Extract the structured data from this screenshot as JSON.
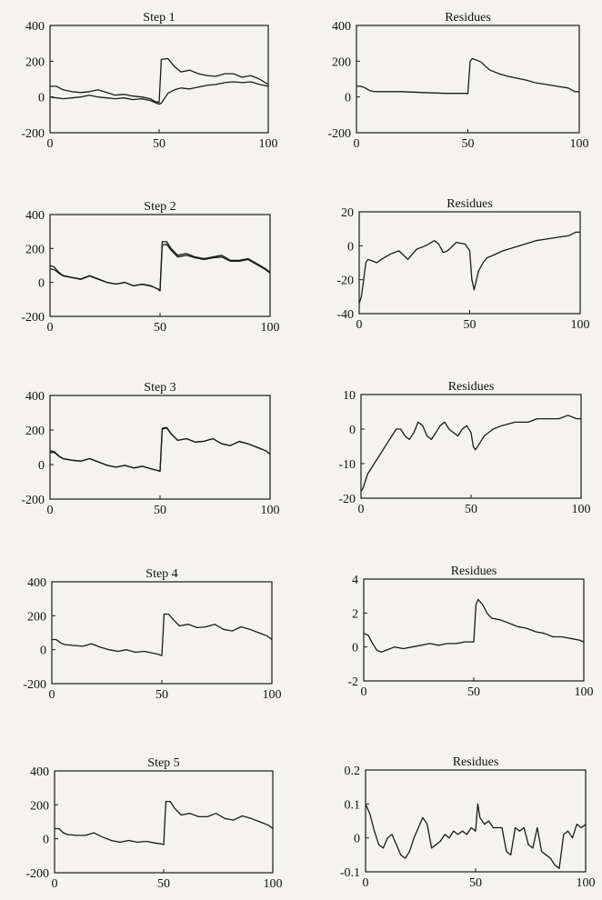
{
  "chart_data": [
    {
      "type": "line",
      "title": "Step 1",
      "xlim": [
        0,
        100
      ],
      "ylim": [
        -200,
        400
      ],
      "xticks": [
        0,
        50,
        100
      ],
      "yticks": [
        -200,
        0,
        200,
        400
      ],
      "series": [
        {
          "x": [
            0,
            3,
            6,
            10,
            14,
            18,
            22,
            26,
            30,
            34,
            38,
            42,
            46,
            48,
            50,
            51,
            54,
            57,
            60,
            64,
            68,
            72,
            76,
            80,
            84,
            88,
            92,
            96,
            100
          ],
          "y": [
            60,
            60,
            40,
            30,
            25,
            30,
            40,
            25,
            10,
            15,
            5,
            0,
            -10,
            -25,
            -30,
            210,
            215,
            170,
            140,
            150,
            130,
            120,
            115,
            130,
            130,
            110,
            120,
            100,
            70
          ]
        },
        {
          "x": [
            0,
            3,
            6,
            10,
            14,
            18,
            22,
            26,
            30,
            34,
            38,
            42,
            46,
            48,
            50,
            51,
            54,
            57,
            60,
            64,
            68,
            72,
            76,
            80,
            84,
            88,
            92,
            96,
            100
          ],
          "y": [
            0,
            -5,
            -10,
            -5,
            0,
            10,
            0,
            -5,
            -10,
            -5,
            -15,
            -10,
            -20,
            -30,
            -40,
            -35,
            20,
            40,
            50,
            45,
            55,
            65,
            70,
            80,
            85,
            80,
            85,
            70,
            60
          ]
        }
      ]
    },
    {
      "type": "line",
      "title": "Residues",
      "xlim": [
        0,
        100
      ],
      "ylim": [
        -200,
        400
      ],
      "xticks": [
        0,
        50,
        100
      ],
      "yticks": [
        -200,
        0,
        200,
        400
      ],
      "series": [
        {
          "x": [
            0,
            2,
            4,
            6,
            8,
            10,
            20,
            30,
            40,
            45,
            49,
            50,
            51,
            52,
            54,
            56,
            58,
            60,
            64,
            68,
            72,
            76,
            80,
            85,
            90,
            95,
            98,
            100
          ],
          "y": [
            60,
            60,
            50,
            35,
            30,
            30,
            30,
            25,
            20,
            20,
            20,
            18,
            200,
            215,
            205,
            195,
            170,
            150,
            130,
            115,
            105,
            95,
            80,
            70,
            60,
            50,
            30,
            30
          ]
        }
      ]
    },
    {
      "type": "line",
      "title": "Step 2",
      "xlim": [
        0,
        100
      ],
      "ylim": [
        -200,
        400
      ],
      "xticks": [
        0,
        50,
        100
      ],
      "yticks": [
        -200,
        0,
        200,
        400
      ],
      "series": [
        {
          "x": [
            0,
            2,
            4,
            6,
            10,
            14,
            18,
            22,
            26,
            30,
            34,
            38,
            42,
            46,
            49,
            50,
            51,
            53,
            55,
            58,
            62,
            66,
            70,
            74,
            78,
            82,
            86,
            90,
            94,
            98,
            100
          ],
          "y": [
            100,
            90,
            60,
            40,
            30,
            20,
            40,
            20,
            0,
            -10,
            0,
            -20,
            -10,
            -20,
            -40,
            -50,
            240,
            240,
            200,
            160,
            170,
            150,
            140,
            150,
            160,
            130,
            130,
            140,
            110,
            80,
            60
          ]
        },
        {
          "x": [
            0,
            2,
            4,
            6,
            10,
            14,
            18,
            22,
            26,
            30,
            34,
            38,
            42,
            46,
            49,
            50,
            51,
            53,
            55,
            58,
            62,
            66,
            70,
            74,
            78,
            82,
            86,
            90,
            94,
            98,
            100
          ],
          "y": [
            80,
            75,
            55,
            38,
            28,
            18,
            38,
            18,
            0,
            -10,
            0,
            -20,
            -12,
            -22,
            -38,
            -45,
            220,
            225,
            190,
            150,
            160,
            145,
            135,
            145,
            150,
            125,
            125,
            135,
            105,
            75,
            55
          ]
        }
      ]
    },
    {
      "type": "line",
      "title": "Residues",
      "xlim": [
        0,
        100
      ],
      "ylim": [
        -40,
        20
      ],
      "xticks": [
        0,
        50,
        100
      ],
      "yticks": [
        -40,
        -20,
        0,
        20
      ],
      "series": [
        {
          "x": [
            0,
            1,
            2,
            3,
            4,
            6,
            8,
            10,
            14,
            18,
            22,
            26,
            30,
            34,
            36,
            38,
            40,
            44,
            48,
            50,
            51,
            52,
            54,
            56,
            58,
            60,
            65,
            70,
            75,
            80,
            85,
            90,
            95,
            98,
            100
          ],
          "y": [
            -34,
            -30,
            -20,
            -10,
            -8,
            -9,
            -10,
            -8,
            -5,
            -3,
            -8,
            -2,
            0,
            3,
            1,
            -4,
            -3,
            2,
            1,
            -3,
            -20,
            -26,
            -15,
            -10,
            -7,
            -6,
            -3,
            -1,
            1,
            3,
            4,
            5,
            6,
            8,
            8
          ]
        }
      ]
    },
    {
      "type": "line",
      "title": "Step 3",
      "xlim": [
        0,
        100
      ],
      "ylim": [
        -200,
        400
      ],
      "xticks": [
        0,
        50,
        100
      ],
      "yticks": [
        -200,
        0,
        200,
        400
      ],
      "series": [
        {
          "x": [
            0,
            2,
            4,
            6,
            10,
            14,
            18,
            22,
            26,
            30,
            34,
            38,
            42,
            46,
            49,
            50,
            51,
            53,
            55,
            58,
            62,
            66,
            70,
            74,
            78,
            82,
            86,
            90,
            94,
            98,
            100
          ],
          "y": [
            80,
            75,
            50,
            35,
            25,
            20,
            35,
            15,
            -5,
            -15,
            -5,
            -20,
            -10,
            -25,
            -35,
            -40,
            210,
            215,
            180,
            140,
            150,
            130,
            135,
            150,
            120,
            110,
            135,
            120,
            100,
            80,
            60
          ]
        },
        {
          "x": [
            0,
            2,
            4,
            6,
            10,
            14,
            18,
            22,
            26,
            30,
            34,
            38,
            42,
            46,
            49,
            50,
            51,
            53,
            55,
            58,
            62,
            66,
            70,
            74,
            78,
            82,
            86,
            90,
            94,
            98,
            100
          ],
          "y": [
            70,
            70,
            48,
            33,
            25,
            20,
            34,
            15,
            -5,
            -15,
            -5,
            -20,
            -10,
            -25,
            -34,
            -38,
            205,
            212,
            178,
            140,
            150,
            130,
            135,
            150,
            120,
            110,
            133,
            120,
            100,
            80,
            60
          ]
        }
      ]
    },
    {
      "type": "line",
      "title": "Residues",
      "xlim": [
        0,
        100
      ],
      "ylim": [
        -20,
        10
      ],
      "xticks": [
        0,
        50,
        100
      ],
      "yticks": [
        -20,
        -10,
        0,
        10
      ],
      "series": [
        {
          "x": [
            0,
            1,
            2,
            3,
            4,
            6,
            8,
            10,
            12,
            14,
            16,
            18,
            20,
            22,
            24,
            26,
            28,
            30,
            32,
            34,
            36,
            38,
            40,
            42,
            44,
            46,
            48,
            50,
            51,
            52,
            54,
            56,
            60,
            64,
            70,
            76,
            80,
            86,
            90,
            94,
            98,
            100
          ],
          "y": [
            -18,
            -17,
            -15,
            -13,
            -12,
            -10,
            -8,
            -6,
            -4,
            -2,
            0,
            0,
            -2,
            -3,
            -1,
            2,
            1,
            -2,
            -3,
            -1,
            1,
            2,
            0,
            -1,
            -2,
            0,
            1,
            -1,
            -5,
            -6,
            -4,
            -2,
            0,
            1,
            2,
            2,
            3,
            3,
            3,
            4,
            3,
            3
          ]
        }
      ]
    },
    {
      "type": "line",
      "title": "Step 4",
      "xlim": [
        0,
        100
      ],
      "ylim": [
        -200,
        400
      ],
      "xticks": [
        0,
        50,
        100
      ],
      "yticks": [
        -200,
        0,
        200,
        400
      ],
      "series": [
        {
          "x": [
            0,
            2,
            4,
            6,
            10,
            14,
            18,
            22,
            26,
            30,
            34,
            38,
            42,
            46,
            49,
            50,
            51,
            53,
            55,
            58,
            62,
            66,
            70,
            74,
            78,
            82,
            86,
            90,
            94,
            98,
            100
          ],
          "y": [
            60,
            60,
            40,
            30,
            25,
            20,
            35,
            15,
            0,
            -10,
            0,
            -15,
            -10,
            -20,
            -30,
            -35,
            210,
            210,
            180,
            140,
            150,
            130,
            135,
            150,
            120,
            110,
            135,
            120,
            100,
            80,
            60
          ]
        }
      ]
    },
    {
      "type": "line",
      "title": "Residues",
      "xlim": [
        0,
        100
      ],
      "ylim": [
        -2,
        4
      ],
      "xticks": [
        0,
        50,
        100
      ],
      "yticks": [
        -2,
        0,
        2,
        4
      ],
      "series": [
        {
          "x": [
            0,
            2,
            4,
            6,
            8,
            10,
            14,
            18,
            22,
            26,
            30,
            34,
            38,
            42,
            46,
            49,
            50,
            51,
            52,
            54,
            56,
            58,
            62,
            66,
            70,
            74,
            78,
            82,
            86,
            90,
            94,
            98,
            100
          ],
          "y": [
            0.8,
            0.7,
            0.2,
            -0.2,
            -0.3,
            -0.2,
            0,
            -0.1,
            0,
            0.1,
            0.2,
            0.1,
            0.2,
            0.2,
            0.3,
            0.3,
            0.3,
            2.5,
            2.8,
            2.5,
            2.0,
            1.7,
            1.6,
            1.4,
            1.2,
            1.1,
            0.9,
            0.8,
            0.6,
            0.6,
            0.5,
            0.4,
            0.3
          ]
        }
      ]
    },
    {
      "type": "line",
      "title": "Step 5",
      "xlim": [
        0,
        100
      ],
      "ylim": [
        -200,
        400
      ],
      "xticks": [
        0,
        50,
        100
      ],
      "yticks": [
        -200,
        0,
        200,
        400
      ],
      "series": [
        {
          "x": [
            0,
            2,
            4,
            6,
            10,
            14,
            18,
            22,
            26,
            30,
            34,
            38,
            42,
            46,
            49,
            50,
            51,
            53,
            55,
            58,
            62,
            66,
            70,
            74,
            78,
            82,
            86,
            90,
            94,
            98,
            100
          ],
          "y": [
            60,
            60,
            35,
            25,
            20,
            20,
            35,
            10,
            -10,
            -20,
            -10,
            -20,
            -15,
            -25,
            -30,
            -35,
            220,
            220,
            180,
            140,
            150,
            130,
            130,
            150,
            120,
            110,
            135,
            120,
            100,
            80,
            60
          ]
        }
      ]
    },
    {
      "type": "line",
      "title": "Residues",
      "xlim": [
        0,
        100
      ],
      "ylim": [
        -0.1,
        0.2
      ],
      "xticks": [
        0,
        50,
        100
      ],
      "yticks": [
        -0.1,
        0,
        0.1,
        0.2
      ],
      "series": [
        {
          "x": [
            0,
            2,
            4,
            6,
            8,
            10,
            12,
            14,
            16,
            18,
            20,
            22,
            24,
            26,
            28,
            30,
            32,
            34,
            36,
            38,
            40,
            42,
            44,
            46,
            48,
            50,
            51,
            52,
            54,
            56,
            58,
            60,
            62,
            64,
            66,
            68,
            70,
            72,
            74,
            76,
            78,
            80,
            82,
            84,
            86,
            88,
            90,
            92,
            94,
            96,
            98,
            100
          ],
          "y": [
            0.1,
            0.07,
            0.02,
            -0.02,
            -0.03,
            0,
            0.01,
            -0.02,
            -0.05,
            -0.06,
            -0.04,
            0,
            0.03,
            0.06,
            0.04,
            -0.03,
            -0.02,
            -0.01,
            0.01,
            0,
            0.02,
            0.01,
            0.02,
            0.01,
            0.03,
            0.02,
            0.1,
            0.06,
            0.04,
            0.05,
            0.03,
            0.03,
            0.03,
            -0.04,
            -0.05,
            0.03,
            0.02,
            0.03,
            -0.02,
            -0.03,
            0.03,
            -0.04,
            -0.05,
            -0.06,
            -0.08,
            -0.09,
            0.01,
            0.02,
            0,
            0.04,
            0.03,
            0.04
          ]
        }
      ]
    }
  ]
}
